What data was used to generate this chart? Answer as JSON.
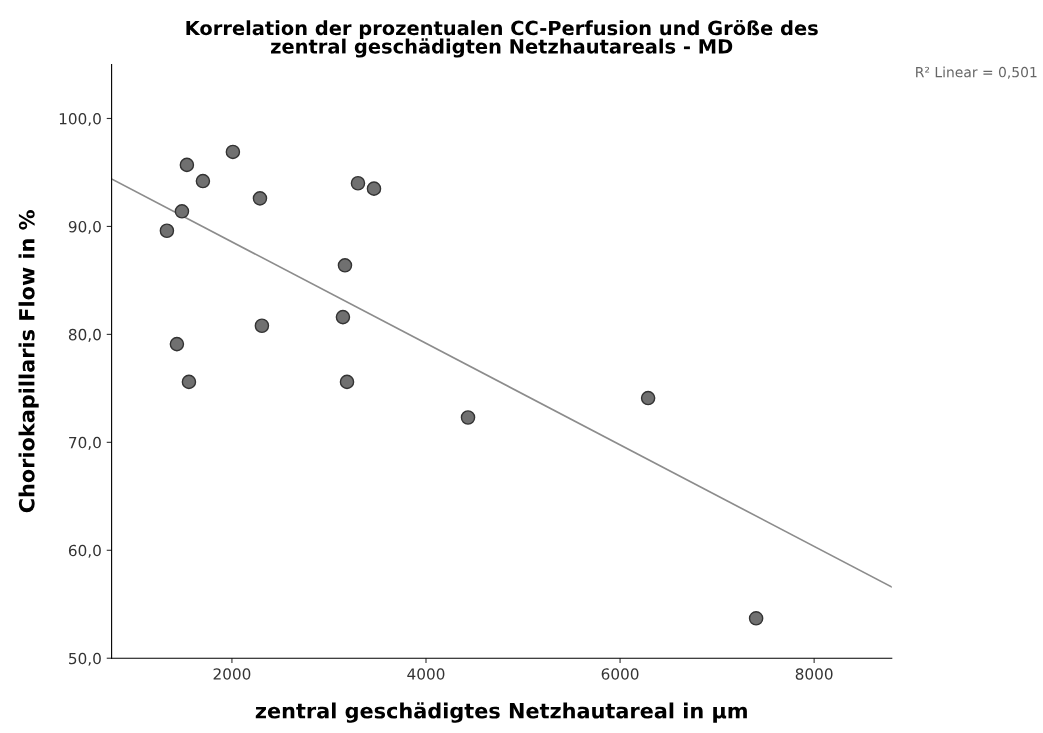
{
  "chart_data": {
    "type": "scatter",
    "title": "Korrelation der prozentualen CC-Perfusion und Größe des\nzentral geschädigten Netzhautareals - MD",
    "xlabel": "zentral geschädigtes Netzhautareal in µm",
    "ylabel": "Choriokapillaris Flow in %",
    "xlim": [
      760,
      8800
    ],
    "ylim": [
      50,
      105
    ],
    "xticks": [
      2000,
      4000,
      6000,
      8000
    ],
    "yticks": [
      {
        "value": 50,
        "label": "50,0"
      },
      {
        "value": 60,
        "label": "60,0"
      },
      {
        "value": 70,
        "label": "70,0"
      },
      {
        "value": 80,
        "label": "80,0"
      },
      {
        "value": 90,
        "label": "90,0"
      },
      {
        "value": 100,
        "label": "100,0"
      }
    ],
    "grid": false,
    "annotations": [
      "R² Linear = 0,501"
    ],
    "series": [
      {
        "marker": "circle",
        "color": "#707070",
        "x": [
          1330,
          1536,
          1485,
          1701,
          2010,
          1433,
          1557,
          2289,
          2309,
          3165,
          3144,
          3186,
          3299,
          3464,
          4433,
          6289,
          7402
        ],
        "values": [
          89.6,
          95.7,
          91.4,
          94.2,
          96.9,
          79.1,
          75.6,
          92.6,
          80.8,
          86.4,
          81.6,
          75.6,
          94.0,
          93.5,
          72.3,
          74.1,
          53.7
        ]
      },
      {
        "type": "line",
        "color": "#8c8c8c",
        "x": [
          760,
          8800
        ],
        "values": [
          94.4,
          56.6
        ]
      }
    ]
  }
}
